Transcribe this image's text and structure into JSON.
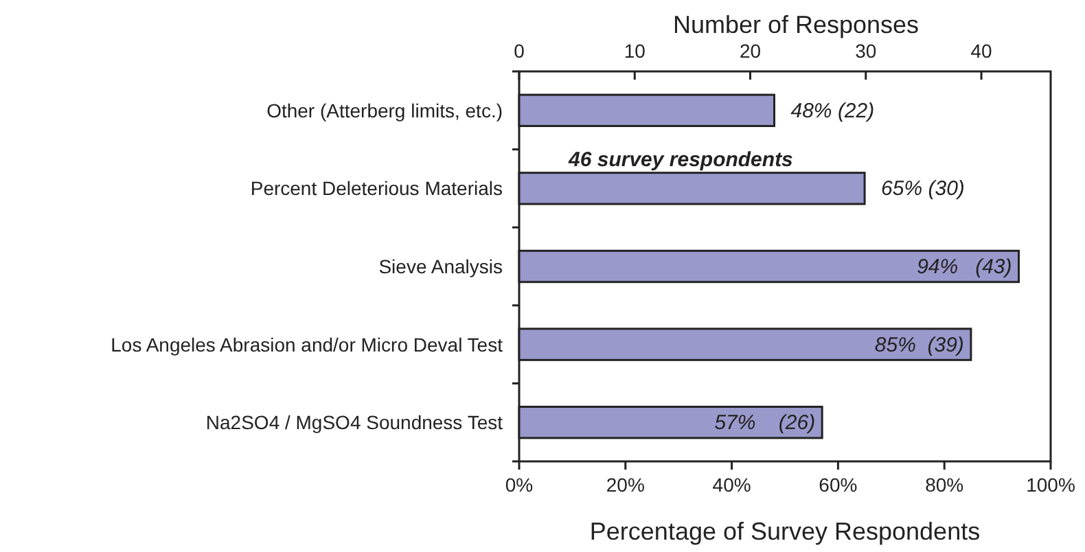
{
  "chart_data": {
    "type": "bar",
    "orientation": "horizontal",
    "xlabel": "Percentage of Survey Respondents",
    "x2label": "Number of Responses",
    "categories": [
      "Other (Atterberg limits, etc.)",
      "Percent Deleterious Materials",
      "Sieve Analysis",
      "Los Angeles Abrasion and/or Micro Deval Test",
      "Na2SO4 / MgSO4 Soundness Test"
    ],
    "values": [
      48,
      65,
      94,
      85,
      57
    ],
    "color": "#9999cc",
    "value_labels": [
      "48% (22)",
      "65% (30)",
      "94%   (43)",
      "85%  (39)",
      "57%    (26)"
    ],
    "xlim": [
      0,
      100
    ],
    "xticks": [
      {
        "value": 0,
        "label": "0%"
      },
      {
        "value": 20,
        "label": "20%"
      },
      {
        "value": 40,
        "label": "40%"
      },
      {
        "value": 60,
        "label": "60%"
      },
      {
        "value": 80,
        "label": "80%"
      },
      {
        "value": 100,
        "label": "100%"
      }
    ],
    "x2lim": [
      0,
      46
    ],
    "x2ticks": [
      0,
      10,
      20,
      30,
      40
    ],
    "annotations": [
      "46 survey respondents"
    ],
    "grid": false
  }
}
